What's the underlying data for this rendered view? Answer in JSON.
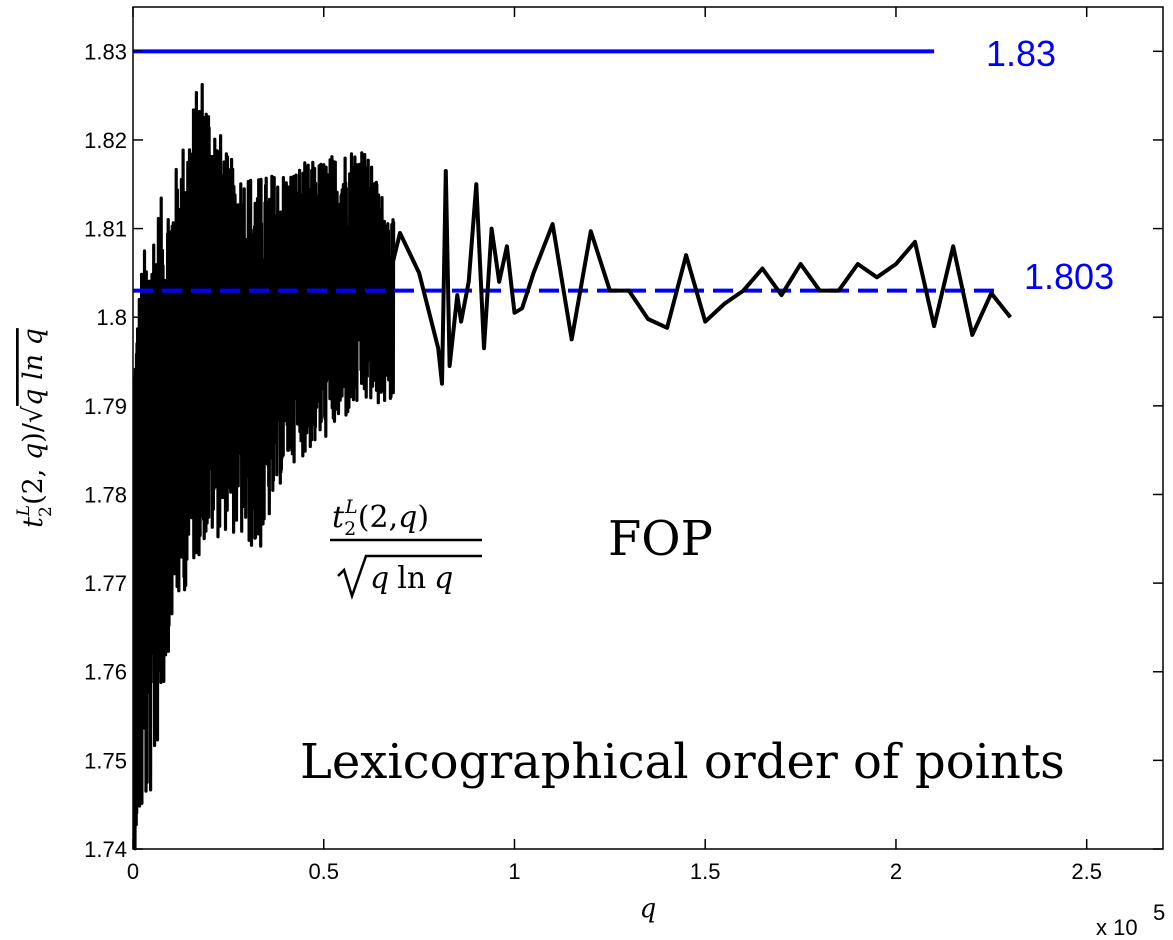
{
  "chart_data": {
    "type": "line",
    "xlabel": "q",
    "x_multiplier": "x 10",
    "x_multiplier_exp": "5",
    "ylabel_math": {
      "t": "t",
      "sub": "2",
      "sup": "L",
      "args": "(2, ",
      "q": "q",
      "close": ")/",
      "root": "q ln q"
    },
    "xlim": [
      0,
      2.7
    ],
    "ylim": [
      1.74,
      1.835
    ],
    "x_ticks": [
      0,
      0.5,
      1,
      1.5,
      2,
      2.5
    ],
    "x_tick_labels": [
      "0",
      "0.5",
      "1",
      "1.5",
      "2",
      "2.5"
    ],
    "y_ticks": [
      1.74,
      1.75,
      1.76,
      1.77,
      1.78,
      1.79,
      1.8,
      1.81,
      1.82,
      1.83
    ],
    "y_tick_labels": [
      "1.74",
      "1.75",
      "1.76",
      "1.77",
      "1.78",
      "1.79",
      "1.8",
      "1.81",
      "1.82",
      "1.83"
    ],
    "grid": false,
    "reference_lines": [
      {
        "value": 1.83,
        "label": "1.83",
        "style": "solid",
        "color": "#0000ff",
        "x_end": 2.1
      },
      {
        "value": 1.803,
        "label": "1.803",
        "style": "dashed",
        "color": "#0000ff",
        "x_end": 2.27
      }
    ],
    "dense_region": {
      "x_range": [
        0,
        0.68
      ],
      "upper_envelope": [
        [
          0.005,
          1.8
        ],
        [
          0.02,
          1.806
        ],
        [
          0.05,
          1.812
        ],
        [
          0.1,
          1.815
        ],
        [
          0.18,
          1.828
        ],
        [
          0.25,
          1.818
        ],
        [
          0.33,
          1.816
        ],
        [
          0.5,
          1.818
        ],
        [
          0.6,
          1.82
        ],
        [
          0.68,
          1.811
        ]
      ],
      "lower_envelope": [
        [
          0.005,
          1.74
        ],
        [
          0.02,
          1.742
        ],
        [
          0.05,
          1.746
        ],
        [
          0.1,
          1.765
        ],
        [
          0.18,
          1.774
        ],
        [
          0.25,
          1.776
        ],
        [
          0.33,
          1.773
        ],
        [
          0.4,
          1.783
        ],
        [
          0.5,
          1.786
        ],
        [
          0.6,
          1.79
        ],
        [
          0.68,
          1.79
        ]
      ]
    },
    "series": [
      {
        "color": "#000000",
        "x": [
          0.68,
          0.7,
          0.75,
          0.8,
          0.81,
          0.82,
          0.83,
          0.85,
          0.86,
          0.88,
          0.9,
          0.92,
          0.94,
          0.96,
          0.98,
          1.0,
          1.02,
          1.05,
          1.1,
          1.15,
          1.2,
          1.25,
          1.3,
          1.35,
          1.4,
          1.45,
          1.5,
          1.55,
          1.6,
          1.65,
          1.7,
          1.75,
          1.8,
          1.85,
          1.9,
          1.95,
          2.0,
          2.05,
          2.1,
          2.15,
          2.2,
          2.25,
          2.3
        ],
        "y": [
          1.806,
          1.8095,
          1.805,
          1.7965,
          1.7925,
          1.8165,
          1.7945,
          1.8025,
          1.7995,
          1.804,
          1.815,
          1.7965,
          1.81,
          1.804,
          1.808,
          1.8005,
          1.801,
          1.805,
          1.8105,
          1.7975,
          1.8097,
          1.803,
          1.803,
          1.7998,
          1.7988,
          1.807,
          1.7995,
          1.8015,
          1.803,
          1.8055,
          1.8025,
          1.806,
          1.803,
          1.803,
          1.806,
          1.8045,
          1.806,
          1.8085,
          1.799,
          1.808,
          1.798,
          1.8027,
          1.8
        ]
      }
    ],
    "annotations": [
      {
        "type": "math",
        "num_t": "t",
        "num_sub": "2",
        "num_sup": "L",
        "num_args": "(2,",
        "num_q": "q",
        "num_close": ")",
        "den_q1": "q",
        "den_ln": "ln",
        "den_q2": "q"
      },
      {
        "type": "text",
        "text": "FOP"
      },
      {
        "type": "text",
        "text": "Lexicographical order of points"
      }
    ]
  }
}
